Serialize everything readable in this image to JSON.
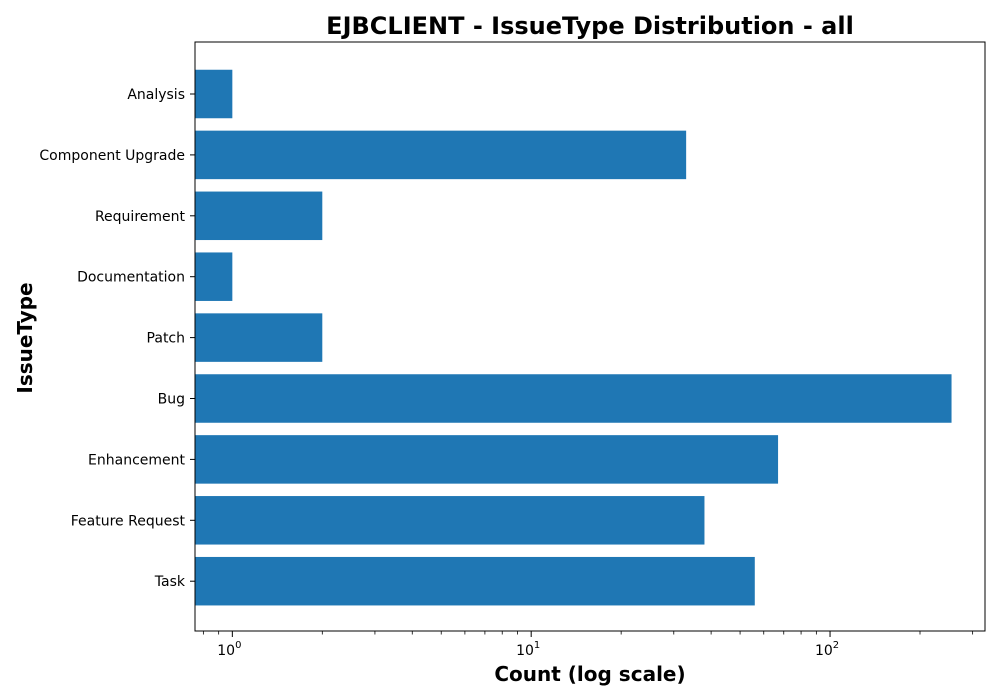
{
  "chart_data": {
    "type": "bar",
    "orientation": "horizontal",
    "title": "EJBCLIENT - IssueType Distribution - all",
    "xlabel": "Count (log scale)",
    "ylabel": "IssueType",
    "x_scale": "log",
    "xlim": [
      0.75,
      330
    ],
    "x_ticks": [
      {
        "base": "10",
        "exp": "0",
        "value": 1
      },
      {
        "base": "10",
        "exp": "1",
        "value": 10
      },
      {
        "base": "10",
        "exp": "2",
        "value": 100
      }
    ],
    "categories": [
      "Analysis",
      "Component Upgrade",
      "Requirement",
      "Documentation",
      "Patch",
      "Bug",
      "Enhancement",
      "Feature Request",
      "Task"
    ],
    "values": [
      1,
      33,
      2,
      1,
      2,
      255,
      67,
      38,
      56
    ],
    "color": "#1f77b4",
    "grid": false,
    "legend": "none"
  }
}
